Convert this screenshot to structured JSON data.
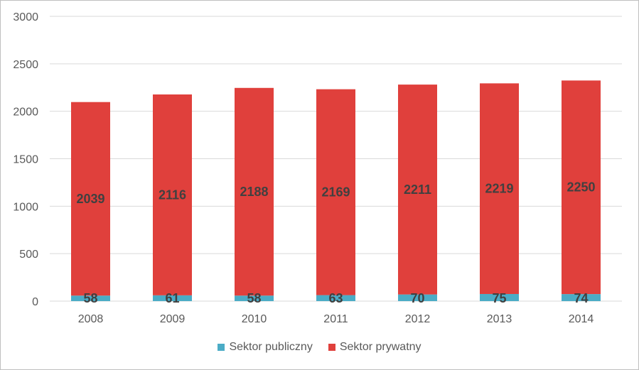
{
  "chart_data": {
    "type": "bar",
    "stacked": true,
    "categories": [
      "2008",
      "2009",
      "2010",
      "2011",
      "2012",
      "2013",
      "2014"
    ],
    "series": [
      {
        "name": "Sektor publiczny",
        "color": "#4BACC6",
        "values": [
          58,
          61,
          58,
          63,
          70,
          75,
          74
        ]
      },
      {
        "name": "Sektor prywatny",
        "color": "#E0403C",
        "values": [
          2039,
          2116,
          2188,
          2169,
          2211,
          2219,
          2250
        ]
      }
    ],
    "ylim": [
      0,
      3000
    ],
    "yticks": [
      "0",
      "500",
      "1000",
      "1500",
      "2000",
      "2500",
      "3000"
    ],
    "grid": true,
    "legend": "bottom"
  }
}
